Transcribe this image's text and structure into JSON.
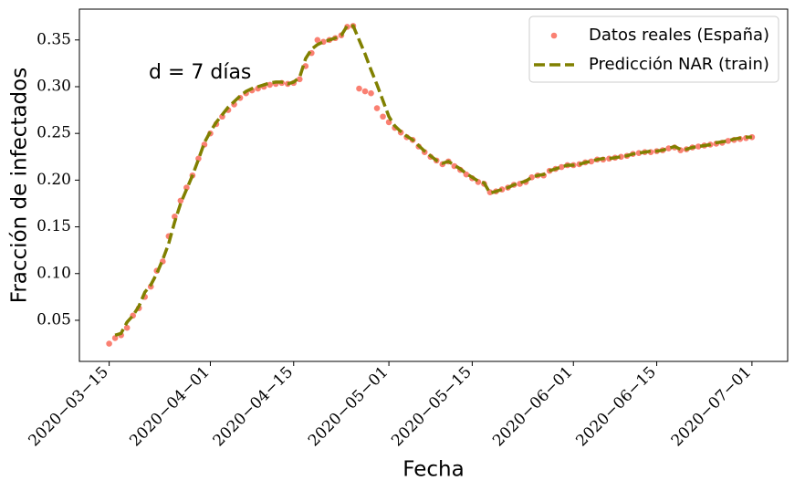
{
  "chart_data": {
    "type": "line",
    "xlabel": "Fecha",
    "ylabel": "Fracción de infectados",
    "annotation": "d = 7 días",
    "legend": "upper right",
    "x": [
      "2020-03-15",
      "2020-03-16",
      "2020-03-17",
      "2020-03-18",
      "2020-03-19",
      "2020-03-20",
      "2020-03-21",
      "2020-03-22",
      "2020-03-23",
      "2020-03-24",
      "2020-03-25",
      "2020-03-26",
      "2020-03-27",
      "2020-03-28",
      "2020-03-29",
      "2020-03-30",
      "2020-03-31",
      "2020-04-01",
      "2020-04-02",
      "2020-04-03",
      "2020-04-04",
      "2020-04-05",
      "2020-04-06",
      "2020-04-07",
      "2020-04-08",
      "2020-04-09",
      "2020-04-10",
      "2020-04-11",
      "2020-04-12",
      "2020-04-13",
      "2020-04-14",
      "2020-04-15",
      "2020-04-16",
      "2020-04-17",
      "2020-04-18",
      "2020-04-19",
      "2020-04-20",
      "2020-04-21",
      "2020-04-22",
      "2020-04-23",
      "2020-04-24",
      "2020-04-25",
      "2020-04-26",
      "2020-04-27",
      "2020-04-28",
      "2020-04-29",
      "2020-04-30",
      "2020-05-01",
      "2020-05-02",
      "2020-05-03",
      "2020-05-04",
      "2020-05-05",
      "2020-05-06",
      "2020-05-07",
      "2020-05-08",
      "2020-05-09",
      "2020-05-10",
      "2020-05-11",
      "2020-05-12",
      "2020-05-13",
      "2020-05-14",
      "2020-05-15",
      "2020-05-16",
      "2020-05-17",
      "2020-05-18",
      "2020-05-19",
      "2020-05-20",
      "2020-05-21",
      "2020-05-22",
      "2020-05-23",
      "2020-05-24",
      "2020-05-25",
      "2020-05-26",
      "2020-05-27",
      "2020-05-28",
      "2020-05-29",
      "2020-05-30",
      "2020-05-31",
      "2020-06-01",
      "2020-06-02",
      "2020-06-03",
      "2020-06-04",
      "2020-06-05",
      "2020-06-06",
      "2020-06-07",
      "2020-06-08",
      "2020-06-09",
      "2020-06-10",
      "2020-06-11",
      "2020-06-12",
      "2020-06-13",
      "2020-06-14",
      "2020-06-15",
      "2020-06-16",
      "2020-06-17",
      "2020-06-18",
      "2020-06-19",
      "2020-06-20",
      "2020-06-21",
      "2020-06-22",
      "2020-06-23",
      "2020-06-24",
      "2020-06-25",
      "2020-06-26",
      "2020-06-27",
      "2020-06-28",
      "2020-06-29",
      "2020-06-30",
      "2020-07-01"
    ],
    "series": [
      {
        "name": "Datos reales (España)",
        "color": "#fa8072",
        "style": "dots",
        "values": [
          0.025,
          0.031,
          0.034,
          0.042,
          0.055,
          0.063,
          0.075,
          0.086,
          0.103,
          0.113,
          0.14,
          0.161,
          0.178,
          0.192,
          0.205,
          0.223,
          0.238,
          0.25,
          0.26,
          0.268,
          0.275,
          0.281,
          0.288,
          0.293,
          0.296,
          0.298,
          0.3,
          0.302,
          0.303,
          0.304,
          0.303,
          0.304,
          0.308,
          0.322,
          0.336,
          0.35,
          0.348,
          0.35,
          0.352,
          0.355,
          0.364,
          0.365,
          0.298,
          0.295,
          0.293,
          0.277,
          0.268,
          0.262,
          0.256,
          0.251,
          0.246,
          0.243,
          0.236,
          0.23,
          0.225,
          0.221,
          0.217,
          0.22,
          0.215,
          0.211,
          0.206,
          0.202,
          0.198,
          0.196,
          0.187,
          0.188,
          0.19,
          0.192,
          0.195,
          0.196,
          0.198,
          0.203,
          0.205,
          0.205,
          0.21,
          0.212,
          0.214,
          0.216,
          0.216,
          0.217,
          0.219,
          0.22,
          0.222,
          0.222,
          0.223,
          0.224,
          0.225,
          0.226,
          0.228,
          0.229,
          0.23,
          0.23,
          0.231,
          0.232,
          0.234,
          0.235,
          0.232,
          0.233,
          0.235,
          0.236,
          0.237,
          0.238,
          0.239,
          0.24,
          0.242,
          0.243,
          0.244,
          0.245,
          0.246
        ]
      },
      {
        "name": "Predicción NAR (train)",
        "color": "#808000",
        "style": "dashed",
        "values": [
          null,
          0.034,
          0.036,
          0.048,
          0.055,
          0.065,
          0.08,
          0.088,
          0.1,
          0.115,
          0.132,
          0.155,
          0.175,
          0.19,
          0.205,
          0.222,
          0.24,
          0.252,
          0.262,
          0.27,
          0.278,
          0.284,
          0.29,
          0.295,
          0.298,
          0.3,
          0.302,
          0.304,
          0.305,
          0.305,
          0.303,
          0.305,
          0.31,
          0.33,
          0.34,
          0.345,
          0.348,
          0.35,
          0.352,
          0.355,
          0.365,
          0.365,
          0.35,
          0.335,
          0.318,
          0.302,
          0.285,
          0.268,
          0.258,
          0.252,
          0.247,
          0.243,
          0.237,
          0.231,
          0.226,
          0.221,
          0.218,
          0.22,
          0.216,
          0.212,
          0.207,
          0.203,
          0.199,
          0.197,
          0.186,
          0.188,
          0.19,
          0.192,
          0.195,
          0.197,
          0.199,
          0.203,
          0.205,
          0.206,
          0.21,
          0.212,
          0.214,
          0.216,
          0.216,
          0.217,
          0.219,
          0.22,
          0.222,
          0.223,
          0.223,
          0.224,
          0.225,
          0.226,
          0.228,
          0.229,
          0.23,
          0.231,
          0.231,
          0.232,
          0.234,
          0.236,
          0.233,
          0.233,
          0.235,
          0.236,
          0.237,
          0.238,
          0.24,
          0.241,
          0.242,
          0.244,
          0.245,
          0.246,
          0.246
        ]
      }
    ],
    "xlim": [
      "2020-03-10",
      "2020-07-07"
    ],
    "xticks": [
      {
        "value": "2020-03-15",
        "label": "2020−03−15"
      },
      {
        "value": "2020-04-01",
        "label": "2020−04−01"
      },
      {
        "value": "2020-04-15",
        "label": "2020−04−15"
      },
      {
        "value": "2020-05-01",
        "label": "2020−05−01"
      },
      {
        "value": "2020-05-15",
        "label": "2020−05−15"
      },
      {
        "value": "2020-06-01",
        "label": "2020−06−01"
      },
      {
        "value": "2020-06-15",
        "label": "2020−06−15"
      },
      {
        "value": "2020-07-01",
        "label": "2020−07−01"
      }
    ],
    "ylim": [
      0.006,
      0.383
    ],
    "yticks": [
      0.05,
      {
        "value": 0.1,
        "label": "0.10"
      },
      0.15,
      {
        "value": 0.2,
        "label": "0.20"
      },
      0.25,
      {
        "value": 0.3,
        "label": "0.30"
      },
      0.35
    ]
  }
}
